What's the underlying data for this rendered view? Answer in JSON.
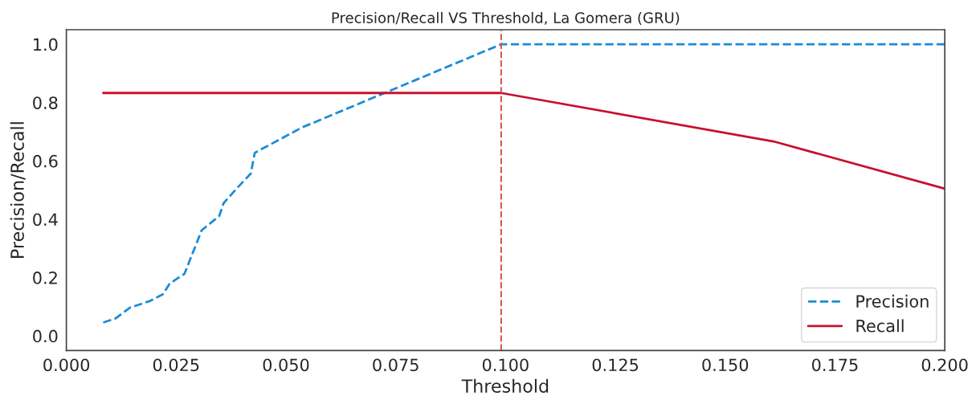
{
  "chart_data": {
    "type": "line",
    "title": "Precision/Recall VS Threshold, La Gomera (GRU)",
    "xlabel": "Threshold",
    "ylabel": "Precision/Recall",
    "xlim": [
      0.0,
      0.2
    ],
    "xticks": [
      {
        "value": 0.0,
        "label": "0.000"
      },
      {
        "value": 0.025,
        "label": "0.025"
      },
      {
        "value": 0.05,
        "label": "0.050"
      },
      {
        "value": 0.075,
        "label": "0.075"
      },
      {
        "value": 0.1,
        "label": "0.100"
      },
      {
        "value": 0.125,
        "label": "0.125"
      },
      {
        "value": 0.15,
        "label": "0.150"
      },
      {
        "value": 0.175,
        "label": "0.175"
      },
      {
        "value": 0.2,
        "label": "0.200"
      }
    ],
    "ylim": [
      -0.05,
      1.05
    ],
    "yticks": [
      {
        "value": 0.0,
        "label": "0.0"
      },
      {
        "value": 0.2,
        "label": "0.2"
      },
      {
        "value": 0.4,
        "label": "0.4"
      },
      {
        "value": 0.6,
        "label": "0.6"
      },
      {
        "value": 0.8,
        "label": "0.8"
      },
      {
        "value": 1.0,
        "label": "1.0"
      }
    ],
    "series": [
      {
        "name": "Precision",
        "color": "#1a8cd8",
        "line_style": "dashed",
        "x": [
          0.0084,
          0.0112,
          0.0145,
          0.0191,
          0.022,
          0.0235,
          0.0269,
          0.0282,
          0.0295,
          0.0308,
          0.0348,
          0.0358,
          0.0387,
          0.042,
          0.0429,
          0.0537,
          0.099,
          0.2
        ],
        "values": [
          0.046,
          0.06,
          0.097,
          0.12,
          0.143,
          0.179,
          0.213,
          0.263,
          0.312,
          0.362,
          0.411,
          0.455,
          0.504,
          0.557,
          0.628,
          0.715,
          1.0,
          1.0
        ]
      },
      {
        "name": "Recall",
        "color": "#c8102e",
        "line_style": "solid",
        "x": [
          0.0084,
          0.099,
          0.161,
          0.2
        ],
        "values": [
          0.833,
          0.833,
          0.667,
          0.505
        ]
      }
    ],
    "ref_lines": [
      {
        "axis": "x",
        "value": 0.099,
        "color": "#d9534f",
        "line_style": "dashed"
      }
    ],
    "legend": "bottom right",
    "grid": false,
    "marker": "none"
  }
}
